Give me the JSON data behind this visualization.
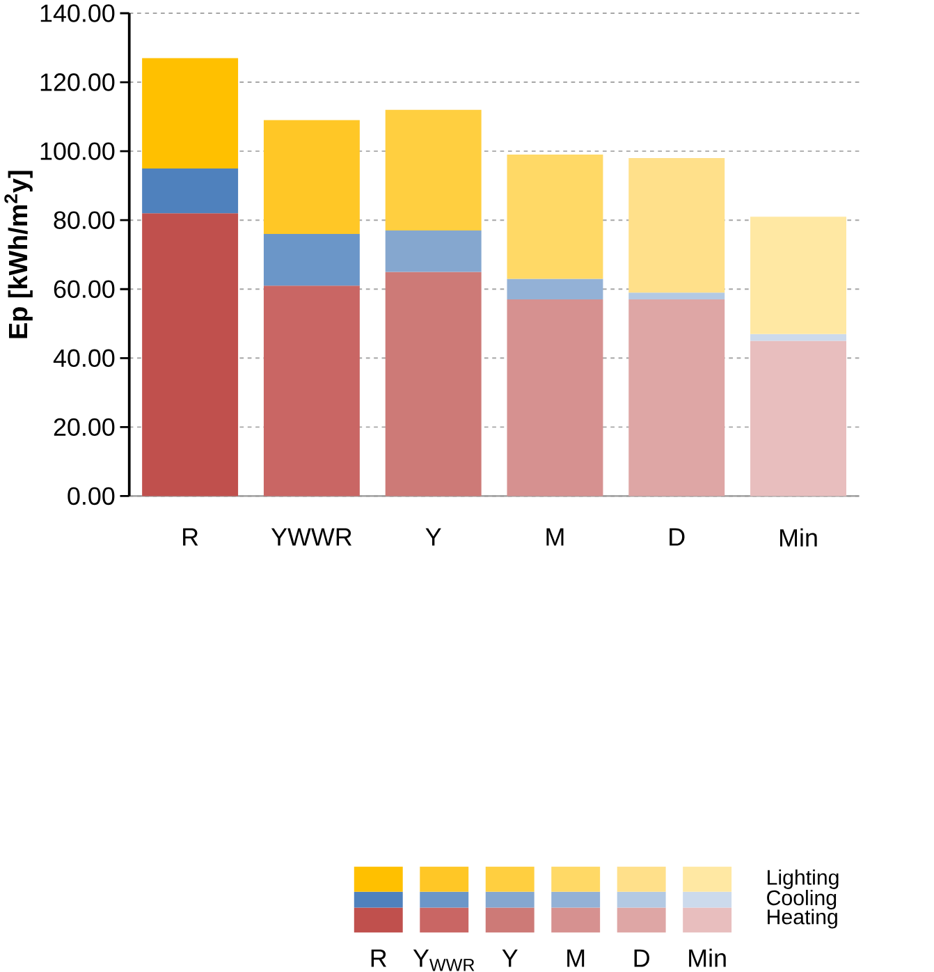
{
  "chart_data": {
    "type": "bar",
    "stacked": true,
    "ylabel": "Ep [kWh/m$^{2}$y]",
    "categories": [
      "R",
      "YWWR",
      "Y",
      "M",
      "D",
      "Min"
    ],
    "series": [
      {
        "name": "Heating",
        "colors": [
          "#c0504d",
          "#c96664",
          "#cd7a77",
          "#d69190",
          "#dea6a5",
          "#e8bebe"
        ],
        "values": [
          82,
          61,
          65,
          57,
          57,
          45
        ]
      },
      {
        "name": "Cooling",
        "colors": [
          "#4f81bd",
          "#6b96c8",
          "#85a7cf",
          "#93b1d6",
          "#b3c9e3",
          "#ccdaec"
        ],
        "values": [
          13,
          15,
          12,
          6,
          2,
          2
        ]
      },
      {
        "name": "Lighting",
        "colors": [
          "#ffc000",
          "#ffc726",
          "#ffcf40",
          "#ffd966",
          "#ffe08a",
          "#ffe8a3"
        ],
        "values": [
          32,
          33,
          35,
          36,
          39,
          34
        ]
      }
    ],
    "ylim": [
      0,
      140
    ],
    "yticks": [
      {
        "value": 0,
        "label": "0.00"
      },
      {
        "value": 20,
        "label": "20.00"
      },
      {
        "value": 40,
        "label": "40.00"
      },
      {
        "value": 60,
        "label": "60.00"
      },
      {
        "value": 80,
        "label": "80.00"
      },
      {
        "value": 100,
        "label": "100.00"
      },
      {
        "value": 120,
        "label": "120.00"
      },
      {
        "value": 140,
        "label": "140.00"
      }
    ],
    "grid": "y",
    "legend": "bottom",
    "annotations": [
      "R",
      "Y$_{WWR}$",
      "Y",
      "M",
      "D",
      "Min"
    ]
  }
}
